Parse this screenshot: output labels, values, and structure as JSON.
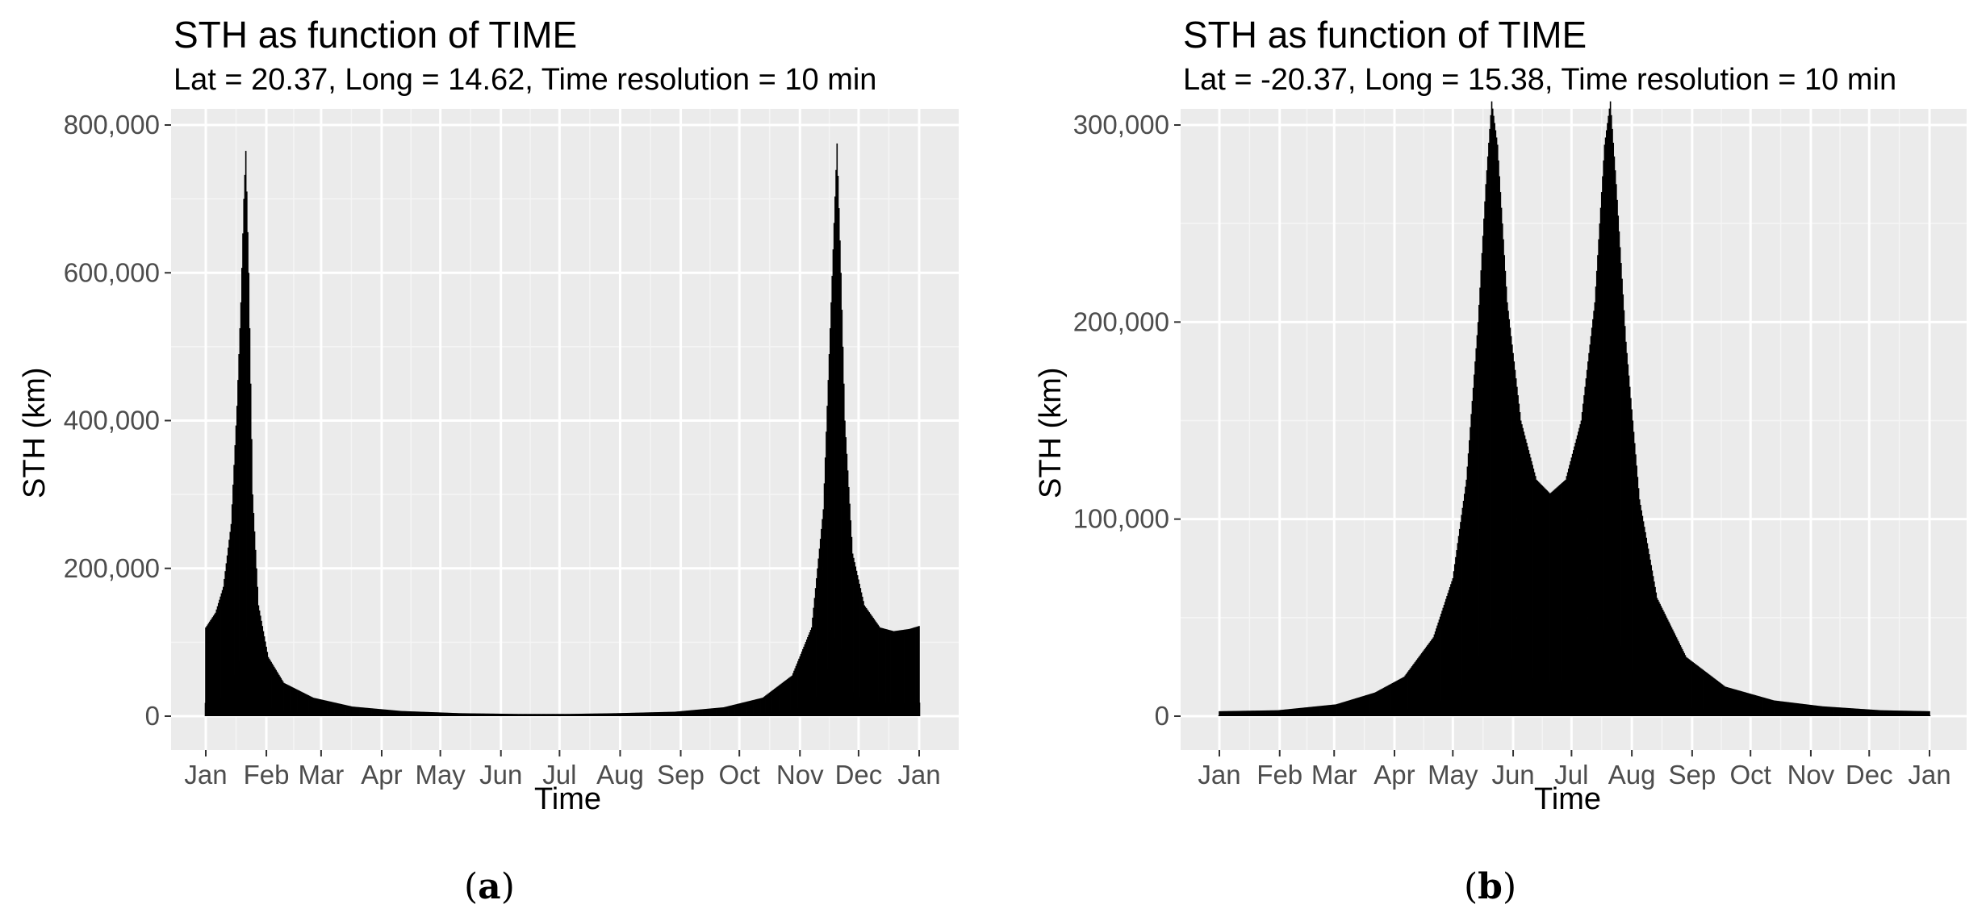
{
  "chart_data": [
    {
      "type": "bar",
      "title": "STH as function of TIME",
      "subtitle": "Lat = 20.37, Long = 14.62, Time resolution = 10 min",
      "xlabel": "Time",
      "ylabel": "STH (km)",
      "caption": "(a)",
      "caption_letter": "a",
      "x_ticks": [
        "Jan",
        "Feb",
        "Mar",
        "Apr",
        "May",
        "Jun",
        "Jul",
        "Aug",
        "Sep",
        "Oct",
        "Nov",
        "Dec",
        "Jan"
      ],
      "y_ticks": [
        "0",
        "200,000",
        "400,000",
        "600,000",
        "800,000"
      ],
      "y_tick_values": [
        0,
        200000,
        400000,
        600000,
        800000
      ],
      "ylim": [
        0,
        800000
      ],
      "xlim_days": [
        0,
        365
      ],
      "grid": true,
      "background": "#ebebeb",
      "bar_color": "#000000",
      "envelope_points": [
        {
          "day": 0,
          "sth": 120000
        },
        {
          "day": 5,
          "sth": 140000
        },
        {
          "day": 9,
          "sth": 175000
        },
        {
          "day": 13,
          "sth": 260000
        },
        {
          "day": 16,
          "sth": 420000
        },
        {
          "day": 18,
          "sth": 560000
        },
        {
          "day": 19.5,
          "sth": 700000
        },
        {
          "day": 20.5,
          "sth": 765000
        },
        {
          "day": 22,
          "sth": 600000
        },
        {
          "day": 24,
          "sth": 300000
        },
        {
          "day": 27,
          "sth": 150000
        },
        {
          "day": 32,
          "sth": 80000
        },
        {
          "day": 40,
          "sth": 45000
        },
        {
          "day": 55,
          "sth": 25000
        },
        {
          "day": 75,
          "sth": 13000
        },
        {
          "day": 100,
          "sth": 7000
        },
        {
          "day": 130,
          "sth": 4000
        },
        {
          "day": 160,
          "sth": 3000
        },
        {
          "day": 185,
          "sth": 3000
        },
        {
          "day": 210,
          "sth": 4000
        },
        {
          "day": 240,
          "sth": 6000
        },
        {
          "day": 265,
          "sth": 12000
        },
        {
          "day": 285,
          "sth": 25000
        },
        {
          "day": 300,
          "sth": 55000
        },
        {
          "day": 310,
          "sth": 120000
        },
        {
          "day": 316,
          "sth": 280000
        },
        {
          "day": 320,
          "sth": 560000
        },
        {
          "day": 323,
          "sth": 775000
        },
        {
          "day": 325,
          "sth": 600000
        },
        {
          "day": 327,
          "sth": 400000
        },
        {
          "day": 331,
          "sth": 220000
        },
        {
          "day": 337,
          "sth": 150000
        },
        {
          "day": 345,
          "sth": 120000
        },
        {
          "day": 352,
          "sth": 115000
        },
        {
          "day": 360,
          "sth": 118000
        },
        {
          "day": 365,
          "sth": 122000
        }
      ]
    },
    {
      "type": "bar",
      "title": "STH as function of TIME",
      "subtitle": "Lat = -20.37, Long = 15.38, Time resolution = 10 min",
      "xlabel": "Time",
      "ylabel": "STH (km)",
      "caption": "(b)",
      "caption_letter": "b",
      "x_ticks": [
        "Jan",
        "Feb",
        "Mar",
        "Apr",
        "May",
        "Jun",
        "Jul",
        "Aug",
        "Sep",
        "Oct",
        "Nov",
        "Dec",
        "Jan"
      ],
      "y_ticks": [
        "0",
        "100,000",
        "200,000",
        "300,000"
      ],
      "y_tick_values": [
        0,
        100000,
        200000,
        300000
      ],
      "ylim": [
        0,
        300000
      ],
      "xlim_days": [
        0,
        365
      ],
      "grid": true,
      "background": "#ebebeb",
      "bar_color": "#000000",
      "envelope_points": [
        {
          "day": 0,
          "sth": 2500
        },
        {
          "day": 30,
          "sth": 3000
        },
        {
          "day": 60,
          "sth": 6000
        },
        {
          "day": 80,
          "sth": 12000
        },
        {
          "day": 95,
          "sth": 20000
        },
        {
          "day": 110,
          "sth": 40000
        },
        {
          "day": 120,
          "sth": 70000
        },
        {
          "day": 127,
          "sth": 120000
        },
        {
          "day": 133,
          "sth": 200000
        },
        {
          "day": 137,
          "sth": 270000
        },
        {
          "day": 140,
          "sth": 312000
        },
        {
          "day": 143,
          "sth": 290000
        },
        {
          "day": 148,
          "sth": 210000
        },
        {
          "day": 155,
          "sth": 150000
        },
        {
          "day": 163,
          "sth": 120000
        },
        {
          "day": 170,
          "sth": 113000
        },
        {
          "day": 178,
          "sth": 120000
        },
        {
          "day": 186,
          "sth": 150000
        },
        {
          "day": 193,
          "sth": 210000
        },
        {
          "day": 198,
          "sth": 290000
        },
        {
          "day": 201,
          "sth": 312000
        },
        {
          "day": 204,
          "sth": 270000
        },
        {
          "day": 209,
          "sth": 190000
        },
        {
          "day": 216,
          "sth": 110000
        },
        {
          "day": 225,
          "sth": 60000
        },
        {
          "day": 240,
          "sth": 30000
        },
        {
          "day": 260,
          "sth": 15000
        },
        {
          "day": 285,
          "sth": 8000
        },
        {
          "day": 310,
          "sth": 5000
        },
        {
          "day": 340,
          "sth": 3000
        },
        {
          "day": 365,
          "sth": 2500
        }
      ]
    }
  ]
}
